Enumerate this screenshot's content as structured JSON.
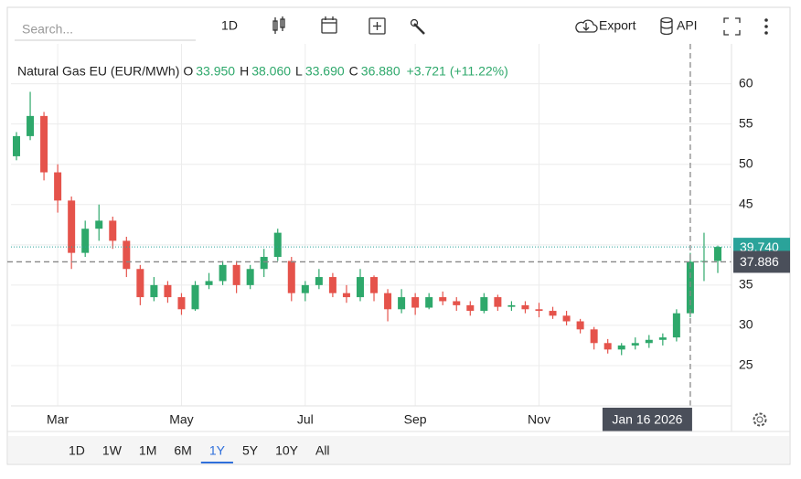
{
  "toolbar": {
    "search_placeholder": "Search...",
    "interval": "1D",
    "export": "Export",
    "api": "API"
  },
  "ranges": {
    "items": [
      "1D",
      "1W",
      "1M",
      "6M",
      "1Y",
      "5Y",
      "10Y",
      "All"
    ],
    "active": "1Y"
  },
  "chart_data": {
    "type": "candlestick",
    "title": "Natural Gas EU (EUR/MWh)",
    "ohlc_legend": [
      [
        "O",
        "33.950"
      ],
      [
        "H",
        "38.060"
      ],
      [
        "L",
        "33.690"
      ],
      [
        "C",
        "36.880"
      ]
    ],
    "change": "+3.721",
    "change_pct": "(+11.22%)",
    "up_color": "#2ea86b",
    "down_color": "#e5534b",
    "categories": [
      null,
      null,
      null,
      "Mar",
      null,
      null,
      null,
      null,
      null,
      null,
      null,
      null,
      "May",
      null,
      null,
      null,
      null,
      null,
      null,
      null,
      null,
      "Jul",
      null,
      null,
      null,
      null,
      null,
      null,
      null,
      "Sep",
      null,
      null,
      null,
      null,
      null,
      null,
      null,
      null,
      "Nov",
      null,
      null,
      null,
      null,
      null,
      null,
      null,
      null,
      null,
      null,
      null,
      null,
      null
    ],
    "open": [
      51,
      53.5,
      56,
      49,
      45.5,
      39,
      42,
      43,
      40.5,
      37,
      33.5,
      35,
      33.5,
      32,
      35,
      35.5,
      37.5,
      35,
      37,
      38.5,
      38,
      34,
      35,
      36,
      34,
      33.5,
      36,
      34,
      32,
      33.5,
      32.2,
      33.5,
      33,
      32.5,
      31.8,
      33.5,
      32.3,
      32.5,
      32,
      31.8,
      31.2,
      30.5,
      29.5,
      27.8,
      27,
      27.5,
      27.8,
      28.2,
      28.5,
      31.5,
      37.9,
      38
    ],
    "high": [
      54,
      59,
      56.5,
      50,
      46,
      43,
      45,
      43.5,
      41,
      37.5,
      36,
      35.5,
      34,
      35.5,
      36.5,
      38,
      38,
      37.5,
      39.5,
      42,
      38.5,
      35.5,
      37,
      36.5,
      35,
      37,
      36.2,
      34.5,
      34.5,
      34,
      34,
      34.2,
      33.5,
      33,
      34,
      33.8,
      33,
      33,
      32.8,
      32.3,
      31.8,
      30.8,
      29.8,
      28.3,
      27.8,
      28.5,
      28.8,
      29,
      32,
      39,
      41.5,
      39.9
    ],
    "low": [
      50.5,
      53,
      48,
      44,
      37,
      38.5,
      40.5,
      39.5,
      36,
      32.5,
      33,
      32.8,
      31.3,
      31.8,
      34.5,
      35,
      34,
      34.5,
      36,
      38,
      33,
      33,
      34.5,
      33.5,
      32.8,
      33,
      33,
      30.5,
      31.5,
      31.3,
      32,
      32.5,
      31.8,
      31.2,
      31.5,
      31.8,
      31.8,
      31.5,
      31,
      30.8,
      30,
      29,
      27,
      26.5,
      26.3,
      27,
      27.2,
      27.5,
      28,
      31,
      35.5,
      36.5
    ],
    "close": [
      53.5,
      56,
      49,
      45.5,
      39,
      42,
      43,
      40.5,
      37,
      33.5,
      35,
      33.5,
      32,
      35,
      35.5,
      37.5,
      35,
      37,
      38.5,
      41.5,
      34,
      35,
      36,
      34,
      33.5,
      36,
      34,
      32,
      33.5,
      32.2,
      33.5,
      33,
      32.5,
      31.8,
      33.5,
      32.3,
      32.5,
      32,
      31.8,
      31.2,
      30.5,
      29.5,
      27.8,
      27,
      27.5,
      27.8,
      28.2,
      28.5,
      31.5,
      37.9,
      38,
      39.74
    ],
    "ylim": [
      20,
      64.5
    ],
    "yticks": [
      25,
      30,
      35,
      40,
      45,
      50,
      55,
      60
    ],
    "grid": true,
    "last_price": {
      "value": 39.74,
      "label": "39.740"
    },
    "crosshair": {
      "value": 37.886,
      "date": "Jan 16 2026"
    }
  }
}
